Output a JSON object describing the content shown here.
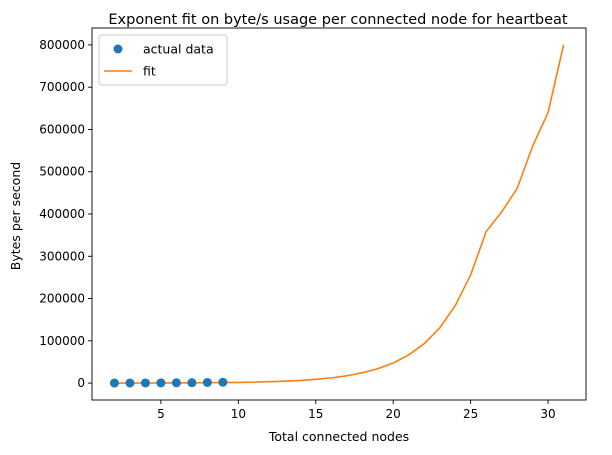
{
  "chart_data": {
    "type": "scatter",
    "title": "Exponent fit on byte/s usage per connected node for heartbeat",
    "xlabel": "Total connected nodes",
    "ylabel": "Bytes per second",
    "xlim": [
      0.55,
      32.45
    ],
    "ylim": [
      -40000,
      840000
    ],
    "xticks": [
      5,
      10,
      15,
      20,
      25,
      30
    ],
    "yticks": [
      0,
      100000,
      200000,
      300000,
      400000,
      500000,
      600000,
      700000,
      800000
    ],
    "grid": false,
    "legend": {
      "placement": "top-left"
    },
    "series": [
      {
        "name": "actual data",
        "kind": "scatter",
        "color": "#1f77b4",
        "x": [
          2,
          3,
          4,
          5,
          6,
          7,
          8,
          9
        ],
        "y": [
          150,
          220,
          320,
          470,
          700,
          1000,
          1450,
          2100
        ]
      },
      {
        "name": "fit",
        "kind": "line",
        "color": "#ff7f0e",
        "x": [
          2,
          3,
          4,
          5,
          6,
          7,
          8,
          9,
          10,
          11,
          12,
          13,
          14,
          15,
          16,
          17,
          18,
          19,
          20,
          21,
          22,
          23,
          24,
          25,
          26,
          27,
          28,
          29,
          30,
          31
        ],
        "y": [
          111,
          156,
          218,
          305,
          427,
          598,
          838,
          1173,
          1643,
          2300,
          3221,
          4509,
          6314,
          8840,
          12377,
          17329,
          24262,
          33969,
          47560,
          66587,
          93228,
          130527,
          182749,
          255864,
          358233,
          405000,
          460000,
          560000,
          640000,
          800000
        ]
      }
    ]
  }
}
